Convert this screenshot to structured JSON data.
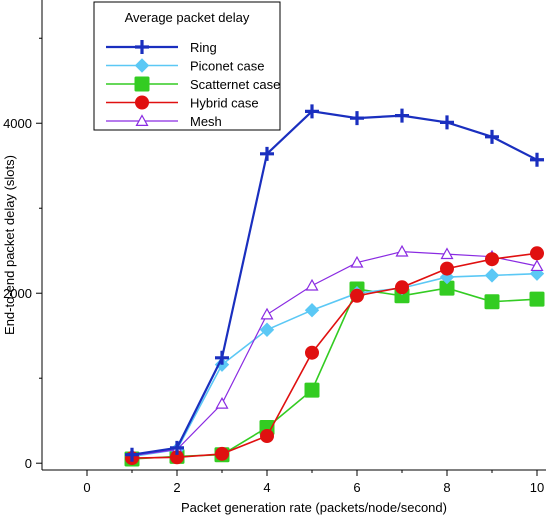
{
  "chart_data": {
    "type": "line",
    "xlabel": "Packet generation rate (packets/node/second)",
    "ylabel": "End-to-end packet delay (slots)",
    "xlim": [
      -1,
      10.2
    ],
    "ylim": [
      -80,
      5450
    ],
    "xticks": [
      0,
      2,
      4,
      6,
      8,
      10
    ],
    "yticks": [
      0,
      2000,
      4000
    ],
    "grid": false,
    "legend": {
      "title": "Average packet delay",
      "placement": "top-left"
    },
    "series": [
      {
        "name": "Ring",
        "color": "#1a2fbf",
        "marker": "plus",
        "x": [
          1,
          2,
          3,
          4,
          5,
          6,
          7,
          8,
          9,
          10
        ],
        "y": [
          100,
          180,
          1240,
          3640,
          4140,
          4060,
          4090,
          4010,
          3840,
          3570
        ]
      },
      {
        "name": "Piconet case",
        "color": "#5bc8f5",
        "marker": "diamond",
        "x": [
          1,
          2,
          3,
          4,
          5,
          6,
          7,
          8,
          9,
          10
        ],
        "y": [
          80,
          160,
          1160,
          1570,
          1800,
          2000,
          2060,
          2190,
          2210,
          2230
        ]
      },
      {
        "name": "Scatternet case",
        "color": "#33cc22",
        "marker": "square",
        "x": [
          1,
          2,
          3,
          4,
          5,
          6,
          7,
          8,
          9,
          10
        ],
        "y": [
          50,
          80,
          100,
          420,
          860,
          2050,
          1970,
          2060,
          1900,
          1930
        ]
      },
      {
        "name": "Hybrid case",
        "color": "#e01010",
        "marker": "circle",
        "x": [
          1,
          2,
          3,
          4,
          5,
          6,
          7,
          8,
          9,
          10
        ],
        "y": [
          60,
          70,
          110,
          320,
          1300,
          1970,
          2070,
          2290,
          2400,
          2470
        ]
      },
      {
        "name": "Mesh",
        "color": "#8a2be2",
        "marker": "triangle",
        "x": [
          1,
          2,
          3,
          4,
          5,
          6,
          7,
          8,
          9,
          10
        ],
        "y": [
          90,
          160,
          700,
          1750,
          2090,
          2360,
          2490,
          2460,
          2430,
          2320
        ]
      }
    ]
  }
}
